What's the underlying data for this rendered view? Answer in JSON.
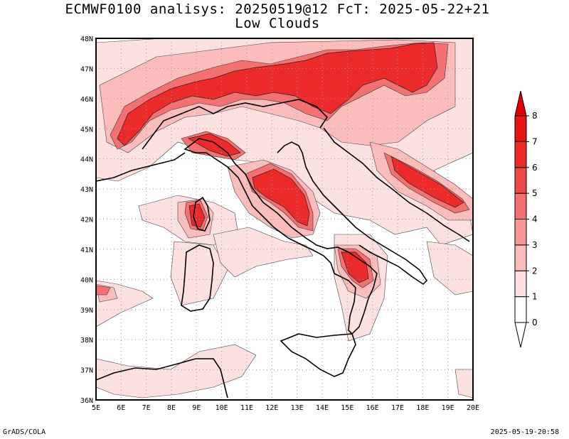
{
  "title": {
    "line1": "ECMWF0100 analisys: 20250519@12 FcT: 2025-05-22+21",
    "line2": "Low Clouds"
  },
  "footer": {
    "left": "GrADS/COLA",
    "right": "2025-05-19-20:58"
  },
  "map": {
    "lat_labels": [
      "48N",
      "47N",
      "46N",
      "45N",
      "44N",
      "43N",
      "42N",
      "41N",
      "40N",
      "39N",
      "38N",
      "37N",
      "36N"
    ],
    "lon_labels": [
      "5E",
      "6E",
      "7E",
      "8E",
      "9E",
      "10E",
      "11E",
      "12E",
      "13E",
      "14E",
      "15E",
      "16E",
      "17E",
      "18E",
      "19E",
      "20E"
    ],
    "lat_range": [
      36,
      48
    ],
    "lon_range": [
      5,
      20
    ],
    "grid": "dotted"
  },
  "colorbar": {
    "levels": [
      "0",
      "1",
      "2",
      "3",
      "4",
      "5",
      "6",
      "7",
      "8"
    ],
    "colors": [
      "#ffffff",
      "#fde0e0",
      "#fbbcbc",
      "#f99696",
      "#f57070",
      "#f04848",
      "#ec2a2a",
      "#e81414"
    ]
  },
  "colors": {
    "lightest": "#fde0e0",
    "light": "#fbbcbc",
    "medium": "#f57070",
    "strong": "#ec2a2a",
    "coast": "#000000"
  }
}
